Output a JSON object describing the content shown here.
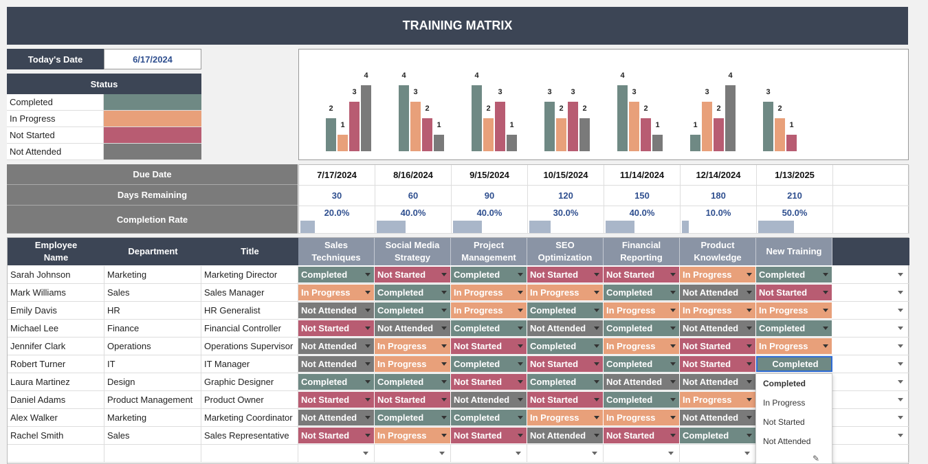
{
  "title": "TRAINING MATRIX",
  "today_label": "Today's Date",
  "today_value": "6/17/2024",
  "status": {
    "header": "Status",
    "items": [
      {
        "label": "Completed",
        "color": "#6f8984"
      },
      {
        "label": "In Progress",
        "color": "#e8a07a"
      },
      {
        "label": "Not Started",
        "color": "#b85c72"
      },
      {
        "label": "Not Attended",
        "color": "#7a7a7a"
      }
    ]
  },
  "chart_data": {
    "type": "bar",
    "categories": [
      "Sales Techniques",
      "Social Media Strategy",
      "Project Management",
      "SEO Optimization",
      "Financial Reporting",
      "Product Knowledge",
      "New Training"
    ],
    "series": [
      {
        "values": [
          2,
          4,
          4,
          3,
          4,
          1,
          3
        ],
        "color": "#6f8984"
      },
      {
        "values": [
          1,
          3,
          2,
          2,
          3,
          3,
          2
        ],
        "color": "#e8a07a"
      },
      {
        "values": [
          3,
          2,
          3,
          3,
          2,
          2,
          1
        ],
        "color": "#b85c72"
      },
      {
        "values": [
          4,
          1,
          1,
          2,
          1,
          4,
          0
        ],
        "color": "#7a7a7a"
      }
    ],
    "ylim": [
      0,
      4
    ]
  },
  "summary": {
    "due_label": "Due Date",
    "days_label": "Days Remaining",
    "rate_label": "Completion Rate",
    "due_dates": [
      "7/17/2024",
      "8/16/2024",
      "9/15/2024",
      "10/15/2024",
      "11/14/2024",
      "12/14/2024",
      "1/13/2025"
    ],
    "days": [
      "30",
      "60",
      "90",
      "120",
      "150",
      "180",
      "210"
    ],
    "rates": [
      "20.0%",
      "40.0%",
      "40.0%",
      "30.0%",
      "40.0%",
      "10.0%",
      "50.0%"
    ],
    "rate_values": [
      0.2,
      0.4,
      0.4,
      0.3,
      0.4,
      0.1,
      0.5
    ]
  },
  "table": {
    "headers": [
      "Employee Name",
      "Department",
      "Title"
    ],
    "trainings": [
      "Sales Techniques",
      "Social Media Strategy",
      "Project Management",
      "SEO Optimization",
      "Financial Reporting",
      "Product Knowledge",
      "New Training"
    ],
    "rows": [
      {
        "name": "Sarah Johnson",
        "dept": "Marketing",
        "title": "Marketing Director",
        "s": [
          "Completed",
          "Not Started",
          "Completed",
          "Not Started",
          "Not Started",
          "In Progress",
          "Completed"
        ]
      },
      {
        "name": "Mark Williams",
        "dept": "Sales",
        "title": "Sales Manager",
        "s": [
          "In Progress",
          "Completed",
          "In Progress",
          "In Progress",
          "Completed",
          "Not Attended",
          "Not Started"
        ]
      },
      {
        "name": "Emily Davis",
        "dept": "HR",
        "title": "HR Generalist",
        "s": [
          "Not Attended",
          "Completed",
          "In Progress",
          "Completed",
          "In Progress",
          "In Progress",
          "In Progress"
        ]
      },
      {
        "name": "Michael Lee",
        "dept": "Finance",
        "title": "Financial Controller",
        "s": [
          "Not Started",
          "Not Attended",
          "Completed",
          "Not Attended",
          "Completed",
          "Not Attended",
          "Completed"
        ]
      },
      {
        "name": "Jennifer Clark",
        "dept": "Operations",
        "title": "Operations Supervisor",
        "s": [
          "Not Attended",
          "In Progress",
          "Not Started",
          "Completed",
          "In Progress",
          "Not Started",
          "In Progress"
        ]
      },
      {
        "name": "Robert Turner",
        "dept": "IT",
        "title": "IT Manager",
        "s": [
          "Not Attended",
          "In Progress",
          "Completed",
          "Not Started",
          "Completed",
          "Not Started",
          "Completed"
        ]
      },
      {
        "name": "Laura Martinez",
        "dept": "Design",
        "title": "Graphic Designer",
        "s": [
          "Completed",
          "Completed",
          "Not Started",
          "Completed",
          "Not Attended",
          "Not Attended",
          ""
        ]
      },
      {
        "name": "Daniel Adams",
        "dept": "Product Management",
        "title": "Product Owner",
        "s": [
          "Not Started",
          "Not Started",
          "Not Attended",
          "Not Started",
          "Completed",
          "In Progress",
          ""
        ]
      },
      {
        "name": "Alex Walker",
        "dept": "Marketing",
        "title": "Marketing Coordinator",
        "s": [
          "Not Attended",
          "Completed",
          "Completed",
          "In Progress",
          "In Progress",
          "Not Attended",
          ""
        ]
      },
      {
        "name": "Rachel Smith",
        "dept": "Sales",
        "title": "Sales Representative",
        "s": [
          "Not Started",
          "In Progress",
          "Not Started",
          "Not Attended",
          "Not Started",
          "Completed",
          ""
        ]
      }
    ]
  },
  "dropdown": {
    "options": [
      "Completed",
      "In Progress",
      "Not Started",
      "Not Attended"
    ],
    "selected": "Completed",
    "pencil_glyph": "✎"
  }
}
